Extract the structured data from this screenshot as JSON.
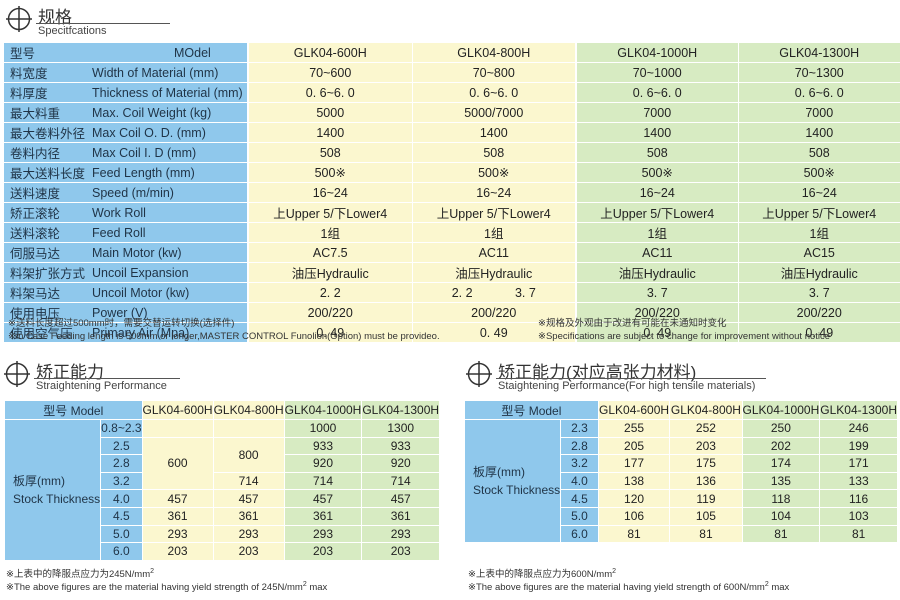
{
  "spec_section": {
    "title_cn": "规格",
    "title_en": "Specitfcations",
    "header": {
      "cn": "型号",
      "en": "MOdel",
      "models": [
        "GLK04-600H",
        "GLK04-800H",
        "GLK04-1000H",
        "GLK04-1300H"
      ]
    },
    "rows": [
      {
        "cn": "料宽度",
        "en": "Width of Material (mm)",
        "values": [
          "70~600",
          "70~800",
          "70~1000",
          "70~1300"
        ]
      },
      {
        "cn": "料厚度",
        "en": "Thickness of Material (mm)",
        "values": [
          "0. 6~6. 0",
          "0. 6~6. 0",
          "0. 6~6. 0",
          "0. 6~6. 0"
        ]
      },
      {
        "cn": "最大料重",
        "en": "Max. Coil Weight (kg)",
        "values": [
          "5000",
          "5000/7000",
          "7000",
          "7000"
        ]
      },
      {
        "cn": "最大卷料外径",
        "en": "Max Coil O. D. (mm)",
        "values": [
          "1400",
          "1400",
          "1400",
          "1400"
        ]
      },
      {
        "cn": "卷料内径",
        "en": "Max Coil I. D (mm)",
        "values": [
          "508",
          "508",
          "508",
          "508"
        ]
      },
      {
        "cn": "最大送料长度",
        "en": "Feed Length (mm)",
        "values": [
          "500※",
          "500※",
          "500※",
          "500※"
        ]
      },
      {
        "cn": "送料速度",
        "en": "Speed (m/min)",
        "values": [
          "16~24",
          "16~24",
          "16~24",
          "16~24"
        ]
      },
      {
        "cn": "矫正滚轮",
        "en": "Work Roll",
        "values": [
          "上Upper 5/下Lower4",
          "上Upper 5/下Lower4",
          "上Upper 5/下Lower4",
          "上Upper 5/下Lower4"
        ]
      },
      {
        "cn": "送料滚轮",
        "en": "Feed Roll",
        "values": [
          "1组",
          "1组",
          "1组",
          "1组"
        ]
      },
      {
        "cn": "伺服马达",
        "en": "Main Motor (kw)",
        "values": [
          "AC7.5",
          "AC11",
          "AC11",
          "AC15"
        ]
      },
      {
        "cn": "料架扩张方式",
        "en": "Uncoil Expansion",
        "values": [
          "油压Hydraulic",
          "油压Hydraulic",
          "油压Hydraulic",
          "油压Hydraulic"
        ]
      },
      {
        "cn": "料架马达",
        "en": "Uncoil Motor (kw)",
        "values": [
          "2. 2",
          "2. 2|3. 7",
          "3. 7",
          "3. 7"
        ]
      },
      {
        "cn": "使用电压",
        "en": "Power (V)",
        "values": [
          "200/220",
          "200/220",
          "200/220",
          "200/220"
        ]
      },
      {
        "cn": "使用空气压",
        "en": "Primary Air (Mpa)",
        "values": [
          "0. 49",
          "0. 49",
          "0. 49",
          "0. 49"
        ]
      }
    ],
    "notes_left": [
      "※送料长度超过500mm时，需要交替运转切换(选择件)",
      "※in Case Feeding length is 500mm or longer,MASTER CONTROL Funolion(Option) must be provideo."
    ],
    "notes_right": [
      "※规格及外观由于改进有可能在未通知时变化",
      "※Specifications are subject to change for improvement without notice"
    ]
  },
  "straight_left": {
    "title_cn": "矫正能力",
    "title_en": "Straightening Performance",
    "header_model": "型号 Model",
    "models": [
      "GLK04-600H",
      "GLK04-800H",
      "GLK04-1000H",
      "GLK04-1300H"
    ],
    "label_cn": "板厚(mm)",
    "label_en": "Stock Thickness",
    "thickness": [
      "0.8~2.3",
      "2.5",
      "2.8",
      "3.2",
      "4.0",
      "4.5",
      "5.0",
      "6.0"
    ],
    "merged_600": "600",
    "merged_800": "800",
    "col_600_tail": [
      "457",
      "361",
      "293",
      "203"
    ],
    "col_800_tail": [
      "714",
      "457",
      "361",
      "293",
      "203"
    ],
    "col_1000": [
      "1000",
      "933",
      "920",
      "714",
      "457",
      "361",
      "293",
      "203"
    ],
    "col_1300": [
      "1300",
      "933",
      "920",
      "714",
      "457",
      "361",
      "293",
      "203"
    ],
    "note_1": "※上表中的降服点应力为245N/mm",
    "note_2": "※The above figures are the material  having yield strength of 245N/mm",
    "note_2_tail": " max",
    "sup": "2"
  },
  "straight_right": {
    "title_cn": "矫正能力(对应高张力材料)",
    "title_en": "Staightening Performance(For high tensile materials)",
    "header_model": "型号 Model",
    "models": [
      "GLK04-600H",
      "GLK04-800H",
      "GLK04-1000H",
      "GLK04-1300H"
    ],
    "label_cn": "板厚(mm)",
    "label_en": "Stock Thickness",
    "rows": [
      {
        "t": "2.3",
        "v": [
          "255",
          "252",
          "250",
          "246"
        ]
      },
      {
        "t": "2.8",
        "v": [
          "205",
          "203",
          "202",
          "199"
        ]
      },
      {
        "t": "3.2",
        "v": [
          "177",
          "175",
          "174",
          "171"
        ]
      },
      {
        "t": "4.0",
        "v": [
          "138",
          "136",
          "135",
          "133"
        ]
      },
      {
        "t": "4.5",
        "v": [
          "120",
          "119",
          "118",
          "116"
        ]
      },
      {
        "t": "5.0",
        "v": [
          "106",
          "105",
          "104",
          "103"
        ]
      },
      {
        "t": "6.0",
        "v": [
          "81",
          "81",
          "81",
          "81"
        ]
      }
    ],
    "note_1": "※上表中的降服点应力为600N/mm",
    "note_2": "※The above figures are the material having yield strength of 600N/mm",
    "note_2_tail": " max",
    "sup": "2"
  },
  "colors": {
    "blue": "#8fc8ec",
    "yellow": "#fbf7cf",
    "green": "#d7ebc2"
  },
  "icons": [
    "crosshair-circle-icon"
  ]
}
